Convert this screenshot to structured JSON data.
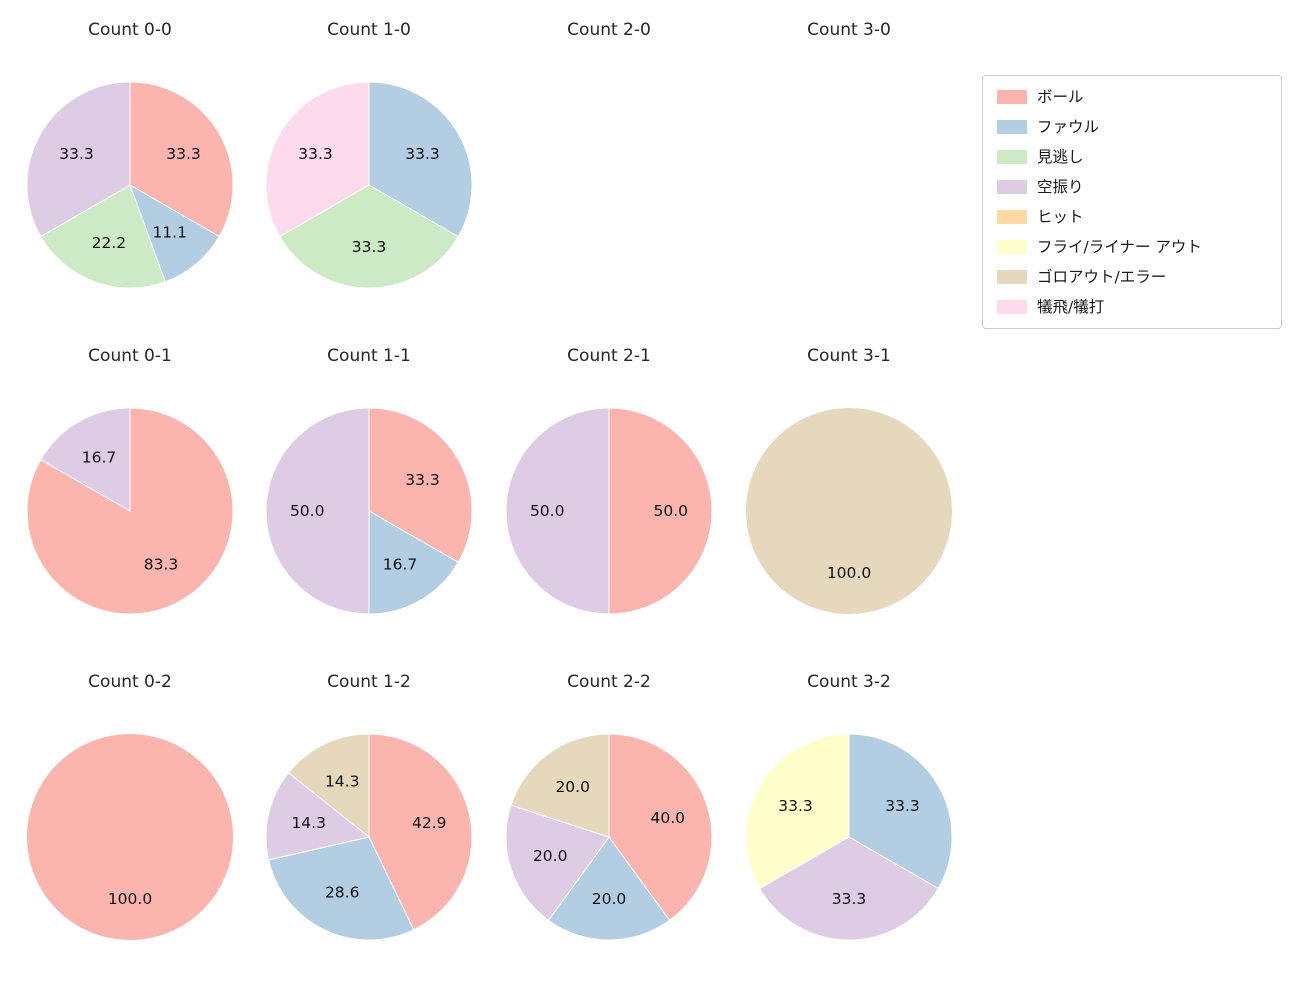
{
  "legend": {
    "items": [
      {
        "label": "ボール",
        "color": "#fbb4ae"
      },
      {
        "label": "ファウル",
        "color": "#b3cde3"
      },
      {
        "label": "見逃し",
        "color": "#ccebc5"
      },
      {
        "label": "空振り",
        "color": "#decbe4"
      },
      {
        "label": "ヒット",
        "color": "#fed9a6"
      },
      {
        "label": "フライ/ライナー アウト",
        "color": "#ffffcc"
      },
      {
        "label": "ゴロアウト/エラー",
        "color": "#e5d8bd"
      },
      {
        "label": "犠飛/犠打",
        "color": "#fddaec"
      }
    ]
  },
  "chart_data": [
    {
      "type": "pie",
      "title": "Count 0-0",
      "start_angle": "top",
      "direction": "clockwise",
      "slices": [
        {
          "name": "ボール",
          "value": 33.3,
          "pct": "33.3",
          "color": "#fbb4ae"
        },
        {
          "name": "ファウル",
          "value": 11.1,
          "pct": "11.1",
          "color": "#b3cde3"
        },
        {
          "name": "見逃し",
          "value": 22.2,
          "pct": "22.2",
          "color": "#ccebc5"
        },
        {
          "name": "空振り",
          "value": 33.3,
          "pct": "33.3",
          "color": "#decbe4"
        }
      ]
    },
    {
      "type": "pie",
      "title": "Count 1-0",
      "start_angle": "top",
      "direction": "clockwise",
      "slices": [
        {
          "name": "ファウル",
          "value": 33.3,
          "pct": "33.3",
          "color": "#b3cde3"
        },
        {
          "name": "見逃し",
          "value": 33.3,
          "pct": "33.3",
          "color": "#ccebc5"
        },
        {
          "name": "犠飛/犠打",
          "value": 33.3,
          "pct": "33.3",
          "color": "#fddaec"
        }
      ]
    },
    {
      "type": "pie",
      "title": "Count 2-0",
      "start_angle": "top",
      "direction": "clockwise",
      "slices": []
    },
    {
      "type": "pie",
      "title": "Count 3-0",
      "start_angle": "top",
      "direction": "clockwise",
      "slices": []
    },
    {
      "type": "pie",
      "title": "Count 0-1",
      "start_angle": "top",
      "direction": "clockwise",
      "slices": [
        {
          "name": "ボール",
          "value": 83.3,
          "pct": "83.3",
          "color": "#fbb4ae"
        },
        {
          "name": "空振り",
          "value": 16.7,
          "pct": "16.7",
          "color": "#decbe4"
        }
      ]
    },
    {
      "type": "pie",
      "title": "Count 1-1",
      "start_angle": "top",
      "direction": "clockwise",
      "slices": [
        {
          "name": "ボール",
          "value": 33.3,
          "pct": "33.3",
          "color": "#fbb4ae"
        },
        {
          "name": "ファウル",
          "value": 16.7,
          "pct": "16.7",
          "color": "#b3cde3"
        },
        {
          "name": "空振り",
          "value": 50.0,
          "pct": "50.0",
          "color": "#decbe4"
        }
      ]
    },
    {
      "type": "pie",
      "title": "Count 2-1",
      "start_angle": "top",
      "direction": "clockwise",
      "slices": [
        {
          "name": "ボール",
          "value": 50.0,
          "pct": "50.0",
          "color": "#fbb4ae"
        },
        {
          "name": "空振り",
          "value": 50.0,
          "pct": "50.0",
          "color": "#decbe4"
        }
      ]
    },
    {
      "type": "pie",
      "title": "Count 3-1",
      "start_angle": "top",
      "direction": "clockwise",
      "slices": [
        {
          "name": "ゴロアウト/エラー",
          "value": 100.0,
          "pct": "100.0",
          "color": "#e5d8bd"
        }
      ]
    },
    {
      "type": "pie",
      "title": "Count 0-2",
      "start_angle": "top",
      "direction": "clockwise",
      "slices": [
        {
          "name": "ボール",
          "value": 100.0,
          "pct": "100.0",
          "color": "#fbb4ae"
        }
      ]
    },
    {
      "type": "pie",
      "title": "Count 1-2",
      "start_angle": "top",
      "direction": "clockwise",
      "slices": [
        {
          "name": "ボール",
          "value": 42.9,
          "pct": "42.9",
          "color": "#fbb4ae"
        },
        {
          "name": "ファウル",
          "value": 28.6,
          "pct": "28.6",
          "color": "#b3cde3"
        },
        {
          "name": "空振り",
          "value": 14.3,
          "pct": "14.3",
          "color": "#decbe4"
        },
        {
          "name": "ゴロアウト/エラー",
          "value": 14.3,
          "pct": "14.3",
          "color": "#e5d8bd"
        }
      ]
    },
    {
      "type": "pie",
      "title": "Count 2-2",
      "start_angle": "top",
      "direction": "clockwise",
      "slices": [
        {
          "name": "ボール",
          "value": 40.0,
          "pct": "40.0",
          "color": "#fbb4ae"
        },
        {
          "name": "ファウル",
          "value": 20.0,
          "pct": "20.0",
          "color": "#b3cde3"
        },
        {
          "name": "空振り",
          "value": 20.0,
          "pct": "20.0",
          "color": "#decbe4"
        },
        {
          "name": "ゴロアウト/エラー",
          "value": 20.0,
          "pct": "20.0",
          "color": "#e5d8bd"
        }
      ]
    },
    {
      "type": "pie",
      "title": "Count 3-2",
      "start_angle": "top",
      "direction": "clockwise",
      "slices": [
        {
          "name": "ファウル",
          "value": 33.3,
          "pct": "33.3",
          "color": "#b3cde3"
        },
        {
          "name": "空振り",
          "value": 33.3,
          "pct": "33.3",
          "color": "#decbe4"
        },
        {
          "name": "フライ/ライナー アウト",
          "value": 33.3,
          "pct": "33.3",
          "color": "#ffffcc"
        }
      ]
    }
  ]
}
